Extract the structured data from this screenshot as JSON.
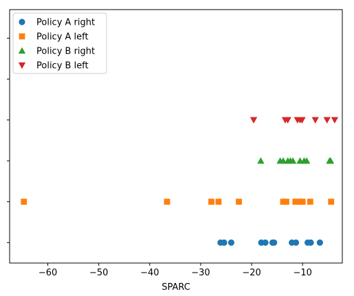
{
  "chart_data": {
    "type": "scatter",
    "title": "",
    "xlabel": "SPARC",
    "ylabel": "",
    "xlim": [
      -67.5,
      -2.2
    ],
    "ylim": [
      -0.5,
      5.7
    ],
    "x_ticks": [
      -60,
      -50,
      -40,
      -30,
      -20,
      -10
    ],
    "x_tick_labels": [
      "−60",
      "−50",
      "−40",
      "−30",
      "−20",
      "−10"
    ],
    "y_ticks": [
      0,
      1,
      2,
      3,
      4,
      5
    ],
    "y_tick_labels": [
      "",
      "",
      "",
      "",
      "",
      ""
    ],
    "grid": false,
    "legend_position": "upper-left",
    "series": [
      {
        "name": "Policy A right",
        "color": "#1f77b4",
        "marker": "circle",
        "x": [
          -26.1,
          -25.4,
          -24.0,
          -18.1,
          -17.3,
          -15.9,
          -15.6,
          -12.1,
          -11.3,
          -9.0,
          -8.4,
          -6.6
        ],
        "y": [
          0,
          0,
          0,
          0,
          0,
          0,
          0,
          0,
          0,
          0,
          0,
          0
        ]
      },
      {
        "name": "Policy A left",
        "color": "#ff7f0e",
        "marker": "square",
        "x": [
          -64.7,
          -36.6,
          -27.9,
          -26.5,
          -22.5,
          -13.8,
          -13.2,
          -11.4,
          -10.6,
          -10.0,
          -8.5,
          -4.4
        ],
        "y": [
          1,
          1,
          1,
          1,
          1,
          1,
          1,
          1,
          1,
          1,
          1,
          1
        ]
      },
      {
        "name": "Policy B right",
        "color": "#2ca02c",
        "marker": "triangle-up",
        "x": [
          -18.2,
          -14.4,
          -13.8,
          -12.9,
          -12.4,
          -11.9,
          -10.5,
          -9.7,
          -9.2,
          -4.7,
          -4.5
        ],
        "y": [
          2,
          2,
          2,
          2,
          2,
          2,
          2,
          2,
          2,
          2,
          2
        ]
      },
      {
        "name": "Policy B left",
        "color": "#d62728",
        "marker": "triangle-down",
        "x": [
          -19.6,
          -13.4,
          -12.9,
          -11.0,
          -10.5,
          -10.1,
          -7.5,
          -5.2,
          -3.7
        ],
        "y": [
          3,
          3,
          3,
          3,
          3,
          3,
          3,
          3,
          3
        ]
      }
    ]
  }
}
